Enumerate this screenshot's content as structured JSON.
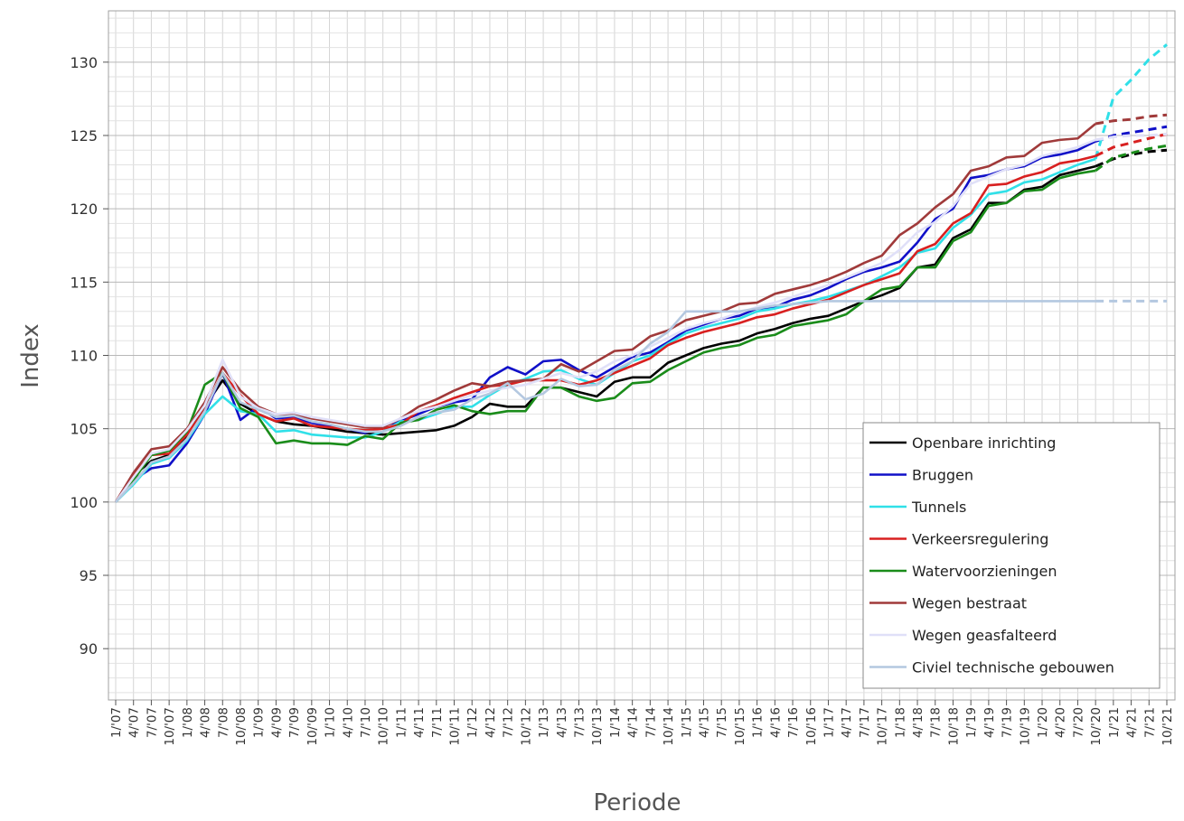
{
  "chart_data": {
    "type": "line",
    "xlabel": "Periode",
    "ylabel": "Index",
    "ylim": [
      86.5,
      133.5
    ],
    "y_ticks": [
      90,
      95,
      100,
      105,
      110,
      115,
      120,
      125,
      130
    ],
    "x": [
      "1/'07",
      "4/'07",
      "7/'07",
      "10/'07",
      "1/'08",
      "4/'08",
      "7/'08",
      "10/'08",
      "1/'09",
      "4/'09",
      "7/'09",
      "10/'09",
      "1/'10",
      "4/'10",
      "7/'10",
      "10/'10",
      "1/'11",
      "4/'11",
      "7/'11",
      "10/'11",
      "1/'12",
      "4/'12",
      "7/'12",
      "10/'12",
      "1/'13",
      "4/'13",
      "7/'13",
      "10/'13",
      "1/'14",
      "4/'14",
      "7/'14",
      "10/'14",
      "1/'15",
      "4/'15",
      "7/'15",
      "10/'15",
      "1/'16",
      "4/'16",
      "7/'16",
      "10/'16",
      "1/'17",
      "4/'17",
      "7/'17",
      "10/'17",
      "1/'18",
      "4/'18",
      "7/'18",
      "10/'18",
      "1/'19",
      "4/'19",
      "7/'19",
      "10/'19",
      "1/'20",
      "4/'20",
      "7/'20",
      "10/'20",
      "1/'21",
      "4/'21",
      "7/'21",
      "10/'21"
    ],
    "grid": true,
    "forecast_from_index": 56,
    "legend_position": "bottom-right",
    "series": [
      {
        "name": "Openbare inrichting",
        "color": "#000000",
        "values": [
          100,
          101.8,
          102.8,
          103.2,
          104.5,
          106.5,
          108.3,
          106.7,
          106.0,
          105.5,
          105.3,
          105.2,
          105.0,
          104.8,
          104.7,
          104.6,
          104.7,
          104.8,
          104.9,
          105.2,
          105.8,
          106.7,
          106.5,
          106.5,
          107.8,
          107.8,
          107.5,
          107.2,
          108.2,
          108.5,
          108.5,
          109.5,
          110.0,
          110.5,
          110.8,
          111.0,
          111.5,
          111.8,
          112.2,
          112.5,
          112.7,
          113.2,
          113.7,
          114.1,
          114.6,
          116.0,
          116.2,
          118.0,
          118.6,
          120.4,
          120.4,
          121.3,
          121.5,
          122.3,
          122.6,
          122.9,
          123.4,
          123.7,
          123.9,
          124.0
        ]
      },
      {
        "name": "Bruggen",
        "color": "#1010c8",
        "values": [
          100,
          101.5,
          102.3,
          102.5,
          104.0,
          106.0,
          108.8,
          105.6,
          106.5,
          105.7,
          105.8,
          105.4,
          105.2,
          105.0,
          104.7,
          105.2,
          105.5,
          106.0,
          106.5,
          106.8,
          107.0,
          108.5,
          109.2,
          108.7,
          109.6,
          109.7,
          109.0,
          108.5,
          109.2,
          109.9,
          110.2,
          110.9,
          111.7,
          112.1,
          112.5,
          112.7,
          113.2,
          113.3,
          113.8,
          114.1,
          114.6,
          115.2,
          115.7,
          116.0,
          116.4,
          117.7,
          119.3,
          120.0,
          122.1,
          122.3,
          122.7,
          122.9,
          123.5,
          123.7,
          124.0,
          124.6,
          125.0,
          125.2,
          125.4,
          125.6
        ]
      },
      {
        "name": "Tunnels",
        "color": "#30e0e8",
        "values": [
          100,
          101.2,
          102.6,
          103.0,
          104.2,
          106.0,
          107.2,
          106.2,
          106.0,
          104.8,
          104.9,
          104.6,
          104.5,
          104.4,
          104.4,
          104.8,
          105.5,
          105.6,
          106.0,
          106.5,
          106.5,
          107.3,
          108.0,
          108.4,
          108.9,
          109.0,
          108.4,
          108.0,
          108.8,
          109.6,
          110.0,
          110.8,
          111.5,
          111.9,
          112.2,
          112.5,
          113.0,
          113.2,
          113.5,
          113.7,
          114.0,
          114.4,
          114.8,
          115.4,
          116.0,
          117.0,
          117.3,
          118.7,
          119.6,
          121.0,
          121.2,
          121.8,
          122.0,
          122.5,
          123.0,
          123.4,
          127.6,
          128.8,
          130.2,
          131.2
        ]
      },
      {
        "name": "Verkeersregulering",
        "color": "#d82020",
        "values": [
          100,
          101.9,
          103.2,
          103.3,
          104.6,
          106.3,
          108.8,
          107.3,
          106.0,
          105.5,
          105.7,
          105.2,
          105.1,
          105.0,
          104.9,
          105.0,
          105.3,
          106.2,
          106.6,
          107.1,
          107.5,
          107.9,
          108.0,
          108.3,
          108.3,
          108.3,
          108.0,
          108.3,
          108.8,
          109.3,
          109.8,
          110.7,
          111.2,
          111.6,
          111.9,
          112.2,
          112.6,
          112.8,
          113.2,
          113.5,
          113.8,
          114.3,
          114.8,
          115.2,
          115.6,
          117.1,
          117.6,
          119.0,
          119.7,
          121.6,
          121.7,
          122.2,
          122.5,
          123.1,
          123.3,
          123.6,
          124.2,
          124.5,
          124.8,
          125.1
        ]
      },
      {
        "name": "Watervoorzieningen",
        "color": "#1a8c1a",
        "values": [
          100,
          101.5,
          103.2,
          103.5,
          104.8,
          108.0,
          108.8,
          106.4,
          105.8,
          104.0,
          104.2,
          104.0,
          104.0,
          103.9,
          104.5,
          104.3,
          105.4,
          105.6,
          106.3,
          106.6,
          106.2,
          106.0,
          106.2,
          106.2,
          107.8,
          107.8,
          107.2,
          106.9,
          107.1,
          108.1,
          108.2,
          109.0,
          109.6,
          110.2,
          110.5,
          110.7,
          111.2,
          111.4,
          112.0,
          112.2,
          112.4,
          112.8,
          113.7,
          114.5,
          114.7,
          116.0,
          116.0,
          117.8,
          118.4,
          120.2,
          120.4,
          121.2,
          121.3,
          122.1,
          122.4,
          122.6,
          123.5,
          123.8,
          124.1,
          124.3
        ]
      },
      {
        "name": "Wegen bestraat",
        "color": "#a03a3a",
        "values": [
          100,
          102.0,
          103.6,
          103.8,
          105.0,
          106.8,
          109.2,
          107.6,
          106.5,
          106.0,
          106.0,
          105.7,
          105.5,
          105.3,
          105.1,
          105.1,
          105.7,
          106.5,
          107.0,
          107.6,
          108.1,
          107.9,
          108.2,
          108.3,
          108.4,
          109.4,
          108.9,
          109.6,
          110.3,
          110.4,
          111.3,
          111.7,
          112.4,
          112.7,
          113.0,
          113.5,
          113.6,
          114.2,
          114.5,
          114.8,
          115.2,
          115.7,
          116.3,
          116.8,
          118.2,
          119.0,
          120.1,
          121.0,
          122.6,
          122.9,
          123.5,
          123.6,
          124.5,
          124.7,
          124.8,
          125.8,
          126.0,
          126.1,
          126.3,
          126.4
        ]
      },
      {
        "name": "Wegen geasfalteerd",
        "color": "#e0e0f8",
        "values": [
          100,
          101.7,
          103.3,
          103.6,
          104.9,
          106.6,
          109.7,
          107.2,
          106.4,
          106.0,
          106.1,
          105.8,
          105.6,
          105.4,
          105.2,
          105.2,
          105.7,
          106.2,
          106.5,
          106.9,
          107.3,
          107.6,
          107.8,
          108.0,
          108.4,
          108.8,
          108.5,
          108.9,
          109.6,
          110.0,
          110.6,
          111.2,
          111.8,
          112.2,
          112.5,
          112.9,
          113.3,
          113.6,
          114.0,
          114.4,
          114.8,
          115.3,
          115.8,
          116.3,
          117.2,
          118.4,
          119.1,
          120.2,
          121.7,
          122.2,
          122.7,
          123.0,
          123.6,
          123.9,
          124.2,
          124.7,
          124.9,
          125.0,
          125.0,
          125.1
        ]
      },
      {
        "name": "Civiel technische gebouwen",
        "color": "#b4c8e0",
        "values": [
          100,
          101.3,
          102.7,
          103.1,
          104.3,
          106.2,
          108.8,
          106.8,
          106.3,
          105.8,
          105.9,
          105.5,
          105.3,
          105.0,
          104.8,
          104.8,
          105.2,
          105.8,
          106.1,
          106.3,
          107.0,
          107.4,
          108.1,
          107.0,
          107.4,
          108.4,
          107.9,
          108.0,
          109.0,
          109.6,
          110.8,
          111.6,
          113.0,
          113.0,
          113.0,
          113.0,
          113.2,
          113.4,
          113.5,
          113.6,
          113.7,
          113.7,
          113.7,
          113.7,
          113.7,
          113.7,
          113.7,
          113.7,
          113.7,
          113.7,
          113.7,
          113.7,
          113.7,
          113.7,
          113.7,
          113.7,
          113.7,
          113.7,
          113.7,
          113.7
        ]
      }
    ]
  }
}
